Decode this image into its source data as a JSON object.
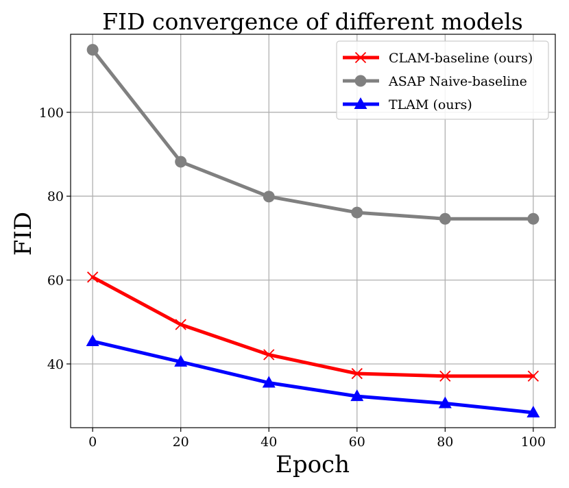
{
  "chart_data": {
    "type": "line",
    "title": "FID convergence of different models",
    "xlabel": "Epoch",
    "ylabel": "FID",
    "x": [
      0,
      20,
      40,
      60,
      80,
      100
    ],
    "xlim": [
      -5,
      105
    ],
    "ylim": [
      24.8,
      118.6
    ],
    "xticks": [
      0,
      20,
      40,
      60,
      80,
      100
    ],
    "yticks": [
      40,
      60,
      80,
      100
    ],
    "grid": true,
    "legend_position": "top-right",
    "series": [
      {
        "name": "CLAM-baseline (ours)",
        "color": "#ff0000",
        "marker": "x",
        "values": [
          60.7,
          49.4,
          42.2,
          37.7,
          37.1,
          37.1
        ]
      },
      {
        "name": "ASAP Naive-baseline",
        "color": "#808080",
        "marker": "circle",
        "values": [
          114.9,
          88.2,
          79.9,
          76.1,
          74.6,
          74.6
        ]
      },
      {
        "name": "TLAM (ours)",
        "color": "#0000ff",
        "marker": "triangle",
        "values": [
          45.4,
          40.5,
          35.5,
          32.3,
          30.6,
          28.4
        ]
      }
    ]
  }
}
